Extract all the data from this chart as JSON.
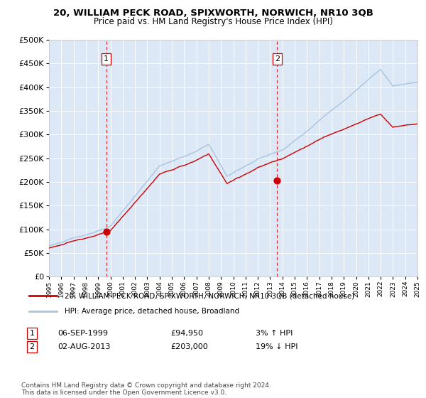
{
  "title": "20, WILLIAM PECK ROAD, SPIXWORTH, NORWICH, NR10 3QB",
  "subtitle": "Price paid vs. HM Land Registry's House Price Index (HPI)",
  "legend_line1": "20, WILLIAM PECK ROAD, SPIXWORTH, NORWICH, NR10 3QB (detached house)",
  "legend_line2": "HPI: Average price, detached house, Broadland",
  "annotation1_label": "1",
  "annotation1_date": "06-SEP-1999",
  "annotation1_price": "£94,950",
  "annotation1_hpi": "3% ↑ HPI",
  "annotation2_label": "2",
  "annotation2_date": "02-AUG-2013",
  "annotation2_price": "£203,000",
  "annotation2_hpi": "19% ↓ HPI",
  "footnote": "Contains HM Land Registry data © Crown copyright and database right 2024.\nThis data is licensed under the Open Government Licence v3.0.",
  "sale1_x": 1999.67,
  "sale1_y": 94950,
  "sale2_x": 2013.58,
  "sale2_y": 203000,
  "hpi_color": "#a8c4e0",
  "price_color": "#cc0000",
  "sale_dot_color": "#cc0000",
  "vline_color": "#cc0000",
  "plot_bg_color": "#dce8f5",
  "ylim": [
    0,
    500000
  ],
  "xlim": [
    1995,
    2025
  ],
  "yticks": [
    0,
    50000,
    100000,
    150000,
    200000,
    250000,
    300000,
    350000,
    400000,
    450000,
    500000
  ]
}
